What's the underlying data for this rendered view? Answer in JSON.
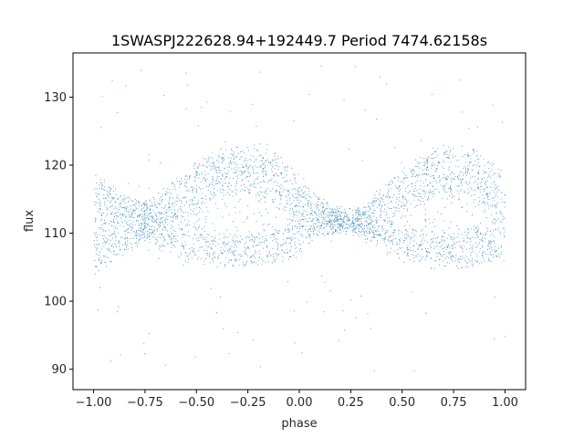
{
  "chart_data": {
    "type": "scatter",
    "title": "1SWASPJ222628.94+192449.7 Period 7474.62158s",
    "xlabel": "phase",
    "ylabel": "flux",
    "xlim": [
      -1.1,
      1.1
    ],
    "ylim": [
      87,
      136.5
    ],
    "xticks": [
      -1.0,
      -0.75,
      -0.5,
      -0.25,
      0.0,
      0.25,
      0.5,
      0.75,
      1.0
    ],
    "xtick_labels": [
      "−1.00",
      "−0.75",
      "−0.50",
      "−0.25",
      "0.00",
      "0.25",
      "0.50",
      "0.75",
      "1.00"
    ],
    "yticks": [
      90,
      100,
      110,
      120,
      130
    ],
    "ytick_labels": [
      "90",
      "100",
      "110",
      "120",
      "130"
    ],
    "grid": false,
    "legend": "none",
    "marker_color": "#1f77b4",
    "series": [
      {
        "x": [
          -1.0,
          -0.95,
          -0.9,
          -0.85,
          -0.8,
          -0.75,
          -0.7,
          -0.65,
          -0.6,
          -0.55,
          -0.5,
          -0.45,
          -0.4,
          -0.35,
          -0.3,
          -0.25,
          -0.2,
          -0.15,
          -0.1,
          -0.05,
          0.0,
          0.05,
          0.1,
          0.15,
          0.2,
          0.25,
          0.3,
          0.35,
          0.4,
          0.45,
          0.5,
          0.55,
          0.6,
          0.65,
          0.7,
          0.75,
          0.8,
          0.85,
          0.9,
          0.95,
          1.0
        ],
        "upper_envelope": [
          118.5,
          117.5,
          116.5,
          115.5,
          114.8,
          114.5,
          115.2,
          116.5,
          118.0,
          119.3,
          120.3,
          121.2,
          121.8,
          122.3,
          122.6,
          122.8,
          122.6,
          122.1,
          121.3,
          119.8,
          118.0,
          116.3,
          114.8,
          113.8,
          113.3,
          113.2,
          113.8,
          114.8,
          116.3,
          118.0,
          119.5,
          120.5,
          121.3,
          122.0,
          122.5,
          122.7,
          122.5,
          122.0,
          121.0,
          119.8,
          118.5
        ],
        "lower_envelope": [
          104.5,
          105.5,
          106.5,
          107.5,
          108.3,
          109.0,
          108.3,
          107.5,
          106.8,
          106.3,
          106.0,
          105.7,
          105.5,
          105.4,
          105.3,
          105.3,
          105.4,
          105.6,
          106.0,
          106.8,
          107.8,
          108.8,
          109.8,
          110.3,
          110.5,
          110.5,
          109.8,
          109.0,
          108.0,
          107.3,
          106.5,
          106.0,
          105.7,
          105.5,
          105.4,
          105.3,
          105.4,
          105.6,
          106.0,
          106.3,
          106.5
        ],
        "inner_gap_upper": [
          null,
          null,
          null,
          null,
          null,
          null,
          null,
          null,
          null,
          112.0,
          113.0,
          114.0,
          114.8,
          115.3,
          115.5,
          115.5,
          115.3,
          114.8,
          113.8,
          112.3,
          null,
          null,
          null,
          null,
          null,
          null,
          null,
          null,
          null,
          112.0,
          113.0,
          114.0,
          114.8,
          115.3,
          115.5,
          115.5,
          115.3,
          114.8,
          113.8,
          112.3,
          null
        ],
        "inner_gap_lower": [
          null,
          null,
          null,
          null,
          null,
          null,
          null,
          null,
          null,
          111.5,
          111.0,
          110.6,
          110.3,
          110.2,
          110.1,
          110.1,
          110.2,
          110.4,
          110.8,
          111.3,
          null,
          null,
          null,
          null,
          null,
          null,
          null,
          null,
          null,
          111.5,
          111.0,
          110.6,
          110.3,
          110.2,
          110.1,
          110.1,
          110.2,
          110.4,
          110.8,
          111.3,
          null
        ],
        "outlier_range": [
          89,
          135
        ]
      }
    ]
  }
}
